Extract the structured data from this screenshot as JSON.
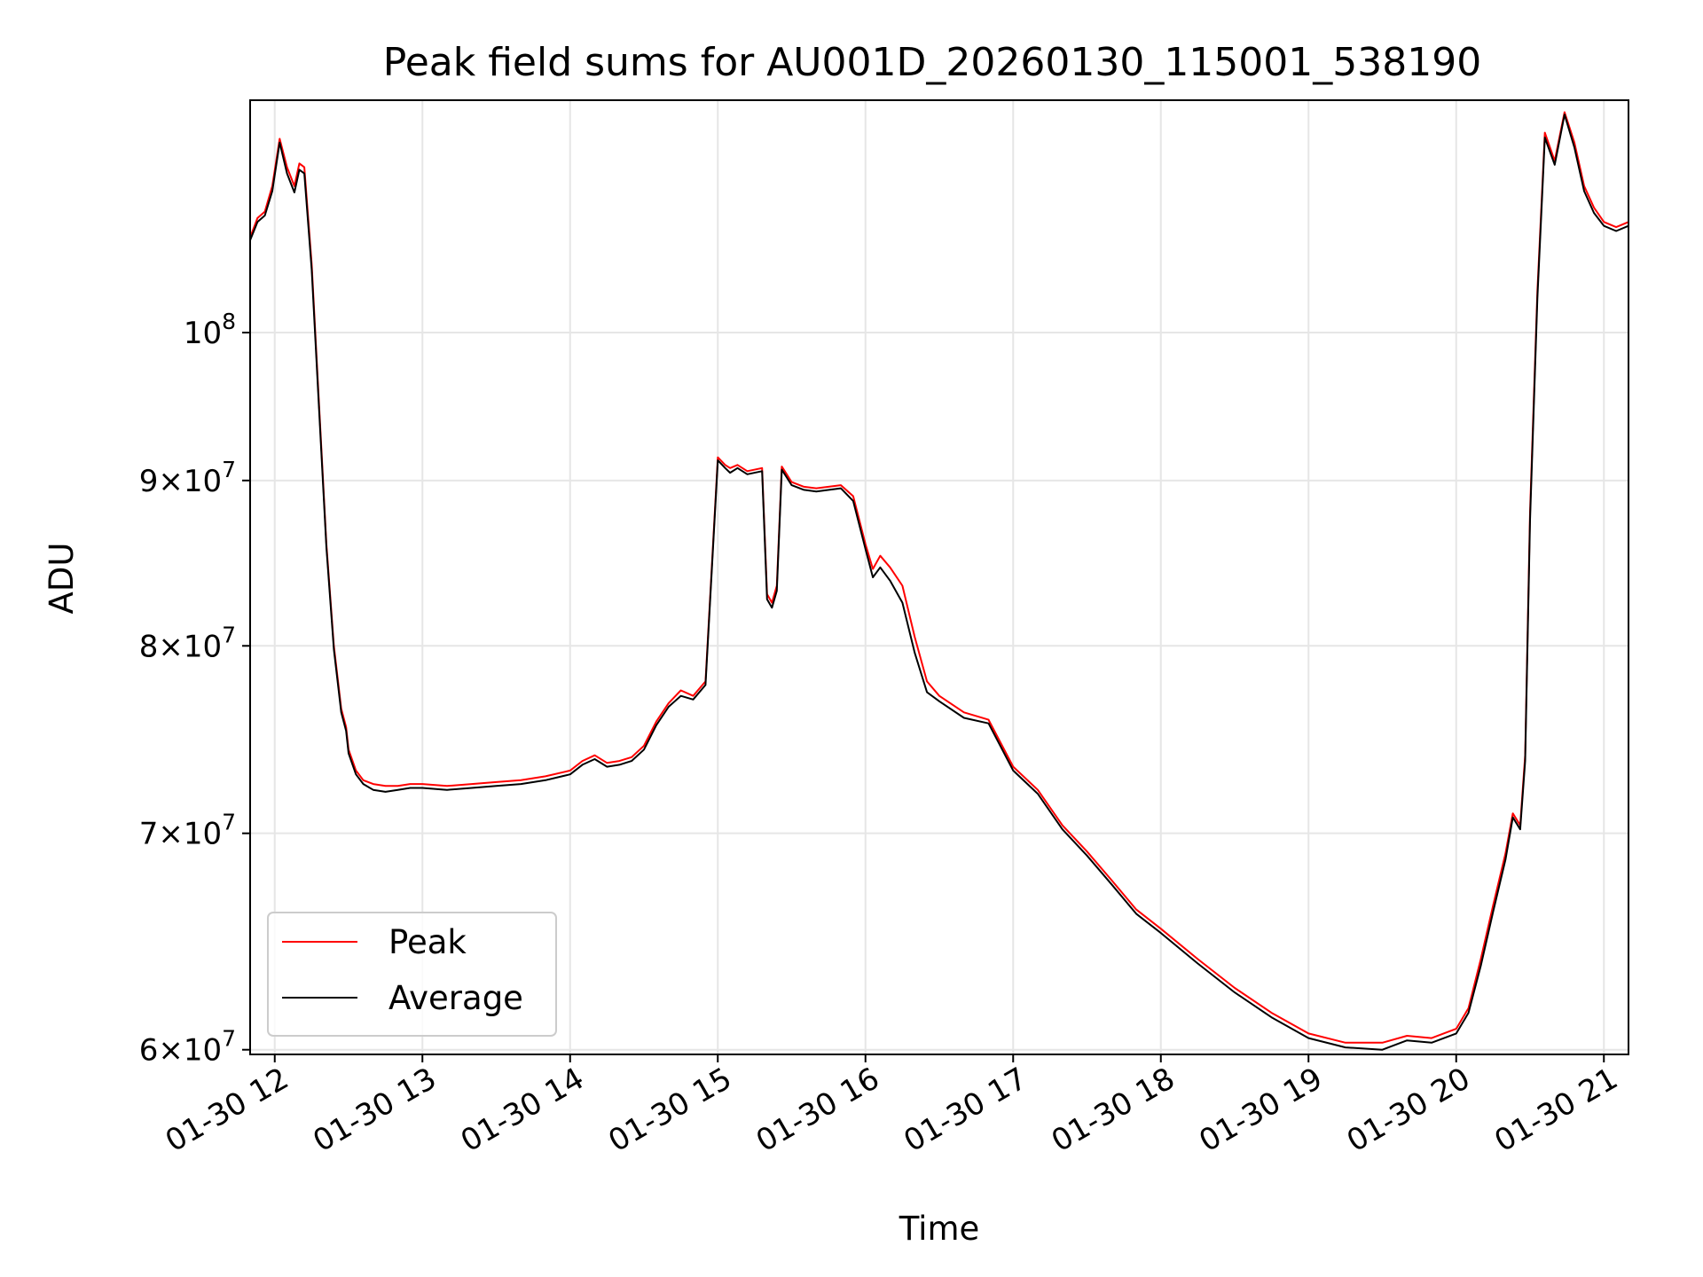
{
  "chart_data": {
    "type": "line",
    "title": "Peak field sums for AU001D_20260130_115001_538190",
    "xlabel": "Time",
    "ylabel": "ADU",
    "yscale": "log",
    "grid": true,
    "legend_position": "lower-left",
    "x_tick_labels": [
      "01-30 12",
      "01-30 13",
      "01-30 14",
      "01-30 15",
      "01-30 16",
      "01-30 17",
      "01-30 18",
      "01-30 19",
      "01-30 20",
      "01-30 21"
    ],
    "y_ticks": [
      {
        "value": 60000000,
        "mantissa": "6",
        "base": "10",
        "exponent": "7"
      },
      {
        "value": 70000000,
        "mantissa": "7",
        "base": "10",
        "exponent": "7"
      },
      {
        "value": 80000000,
        "mantissa": "8",
        "base": "10",
        "exponent": "7"
      },
      {
        "value": 90000000,
        "mantissa": "9",
        "base": "10",
        "exponent": "7"
      },
      {
        "value": 100000000,
        "mantissa": "",
        "base": "10",
        "exponent": "8"
      }
    ],
    "xlim": [
      "01-30 11:50",
      "01-30 21:10"
    ],
    "ylim": [
      59800000,
      118000000
    ],
    "series": [
      {
        "name": "Peak",
        "color": "#ff0000",
        "x": [
          "01-30 11:50",
          "01-30 11:53",
          "01-30 11:56",
          "01-30 11:59",
          "01-30 12:02",
          "01-30 12:05",
          "01-30 12:08",
          "01-30 12:10",
          "01-30 12:12",
          "01-30 12:15",
          "01-30 12:18",
          "01-30 12:21",
          "01-30 12:24",
          "01-30 12:27",
          "01-30 12:29",
          "01-30 12:30",
          "01-30 12:33",
          "01-30 12:36",
          "01-30 12:40",
          "01-30 12:45",
          "01-30 12:50",
          "01-30 12:55",
          "01-30 13:00",
          "01-30 13:10",
          "01-30 13:20",
          "01-30 13:30",
          "01-30 13:40",
          "01-30 13:50",
          "01-30 14:00",
          "01-30 14:05",
          "01-30 14:10",
          "01-30 14:15",
          "01-30 14:20",
          "01-30 14:25",
          "01-30 14:30",
          "01-30 14:35",
          "01-30 14:40",
          "01-30 14:45",
          "01-30 14:50",
          "01-30 14:55",
          "01-30 15:00",
          "01-30 15:03",
          "01-30 15:05",
          "01-30 15:08",
          "01-30 15:12",
          "01-30 15:18",
          "01-30 15:20",
          "01-30 15:22",
          "01-30 15:24",
          "01-30 15:26",
          "01-30 15:28",
          "01-30 15:30",
          "01-30 15:35",
          "01-30 15:40",
          "01-30 15:50",
          "01-30 15:55",
          "01-30 16:00",
          "01-30 16:03",
          "01-30 16:06",
          "01-30 16:10",
          "01-30 16:15",
          "01-30 16:20",
          "01-30 16:25",
          "01-30 16:30",
          "01-30 16:40",
          "01-30 16:50",
          "01-30 17:00",
          "01-30 17:10",
          "01-30 17:20",
          "01-30 17:30",
          "01-30 17:40",
          "01-30 17:50",
          "01-30 18:00",
          "01-30 18:15",
          "01-30 18:30",
          "01-30 18:45",
          "01-30 19:00",
          "01-30 19:15",
          "01-30 19:30",
          "01-30 19:40",
          "01-30 19:50",
          "01-30 20:00",
          "01-30 20:05",
          "01-30 20:10",
          "01-30 20:15",
          "01-30 20:20",
          "01-30 20:23",
          "01-30 20:26",
          "01-30 20:28",
          "01-30 20:30",
          "01-30 20:33",
          "01-30 20:36",
          "01-30 20:40",
          "01-30 20:44",
          "01-30 20:48",
          "01-30 20:52",
          "01-30 20:56",
          "01-30 21:00",
          "01-30 21:05",
          "01-30 21:10"
        ],
        "values": [
          107000000,
          108500000,
          109000000,
          111000000,
          114800000,
          112500000,
          111000000,
          112800000,
          112500000,
          105000000,
          95000000,
          86000000,
          80000000,
          76500000,
          75500000,
          74300000,
          73200000,
          72700000,
          72500000,
          72400000,
          72400000,
          72500000,
          72500000,
          72400000,
          72500000,
          72600000,
          72700000,
          72900000,
          73200000,
          73700000,
          74000000,
          73600000,
          73700000,
          73900000,
          74500000,
          75800000,
          76800000,
          77500000,
          77200000,
          78000000,
          91500000,
          91000000,
          90800000,
          91000000,
          90600000,
          90800000,
          83000000,
          82500000,
          83500000,
          90900000,
          90400000,
          89900000,
          89600000,
          89500000,
          89700000,
          89000000,
          86000000,
          84500000,
          85300000,
          84600000,
          83500000,
          80500000,
          78000000,
          77200000,
          76300000,
          75900000,
          73400000,
          72200000,
          70400000,
          69100000,
          67700000,
          66300000,
          65400000,
          64000000,
          62700000,
          61600000,
          60700000,
          60300000,
          60300000,
          60600000,
          60500000,
          60900000,
          61800000,
          64000000,
          66500000,
          69000000,
          71000000,
          70400000,
          74000000,
          88000000,
          103000000,
          115300000,
          113000000,
          117000000,
          114500000,
          111000000,
          109300000,
          108200000,
          107800000,
          108200000
        ]
      },
      {
        "name": "Average",
        "color": "#000000",
        "x": [
          "01-30 11:50",
          "01-30 11:53",
          "01-30 11:56",
          "01-30 11:59",
          "01-30 12:02",
          "01-30 12:05",
          "01-30 12:08",
          "01-30 12:10",
          "01-30 12:12",
          "01-30 12:15",
          "01-30 12:18",
          "01-30 12:21",
          "01-30 12:24",
          "01-30 12:27",
          "01-30 12:29",
          "01-30 12:30",
          "01-30 12:33",
          "01-30 12:36",
          "01-30 12:40",
          "01-30 12:45",
          "01-30 12:50",
          "01-30 12:55",
          "01-30 13:00",
          "01-30 13:10",
          "01-30 13:20",
          "01-30 13:30",
          "01-30 13:40",
          "01-30 13:50",
          "01-30 14:00",
          "01-30 14:05",
          "01-30 14:10",
          "01-30 14:15",
          "01-30 14:20",
          "01-30 14:25",
          "01-30 14:30",
          "01-30 14:35",
          "01-30 14:40",
          "01-30 14:45",
          "01-30 14:50",
          "01-30 14:55",
          "01-30 15:00",
          "01-30 15:03",
          "01-30 15:05",
          "01-30 15:08",
          "01-30 15:12",
          "01-30 15:18",
          "01-30 15:20",
          "01-30 15:22",
          "01-30 15:24",
          "01-30 15:26",
          "01-30 15:28",
          "01-30 15:30",
          "01-30 15:35",
          "01-30 15:40",
          "01-30 15:50",
          "01-30 15:55",
          "01-30 16:00",
          "01-30 16:03",
          "01-30 16:06",
          "01-30 16:10",
          "01-30 16:15",
          "01-30 16:20",
          "01-30 16:25",
          "01-30 16:30",
          "01-30 16:40",
          "01-30 16:50",
          "01-30 17:00",
          "01-30 17:10",
          "01-30 17:20",
          "01-30 17:30",
          "01-30 17:40",
          "01-30 17:50",
          "01-30 18:00",
          "01-30 18:15",
          "01-30 18:30",
          "01-30 18:45",
          "01-30 19:00",
          "01-30 19:15",
          "01-30 19:30",
          "01-30 19:40",
          "01-30 19:50",
          "01-30 20:00",
          "01-30 20:05",
          "01-30 20:10",
          "01-30 20:15",
          "01-30 20:20",
          "01-30 20:23",
          "01-30 20:26",
          "01-30 20:28",
          "01-30 20:30",
          "01-30 20:33",
          "01-30 20:36",
          "01-30 20:40",
          "01-30 20:44",
          "01-30 20:48",
          "01-30 20:52",
          "01-30 20:56",
          "01-30 21:00",
          "01-30 21:05",
          "01-30 21:10"
        ],
        "values": [
          106800000,
          108200000,
          108700000,
          110600000,
          114500000,
          112000000,
          110500000,
          112300000,
          112000000,
          104600000,
          94700000,
          85800000,
          79800000,
          76300000,
          75300000,
          74100000,
          73000000,
          72500000,
          72200000,
          72100000,
          72200000,
          72300000,
          72300000,
          72200000,
          72300000,
          72400000,
          72500000,
          72700000,
          73000000,
          73500000,
          73800000,
          73400000,
          73500000,
          73700000,
          74300000,
          75600000,
          76600000,
          77200000,
          77000000,
          77800000,
          91300000,
          90800000,
          90500000,
          90800000,
          90400000,
          90600000,
          82700000,
          82200000,
          83200000,
          90700000,
          90200000,
          89700000,
          89400000,
          89300000,
          89500000,
          88700000,
          85700000,
          84000000,
          84600000,
          83800000,
          82500000,
          79600000,
          77400000,
          76900000,
          76000000,
          75700000,
          73200000,
          72000000,
          70200000,
          68900000,
          67500000,
          66100000,
          65200000,
          63800000,
          62500000,
          61400000,
          60500000,
          60100000,
          60000000,
          60400000,
          60300000,
          60700000,
          61600000,
          63700000,
          66200000,
          68700000,
          70800000,
          70200000,
          73700000,
          87500000,
          102500000,
          114900000,
          112700000,
          116800000,
          114100000,
          110600000,
          108900000,
          107900000,
          107500000,
          107900000
        ]
      }
    ]
  }
}
